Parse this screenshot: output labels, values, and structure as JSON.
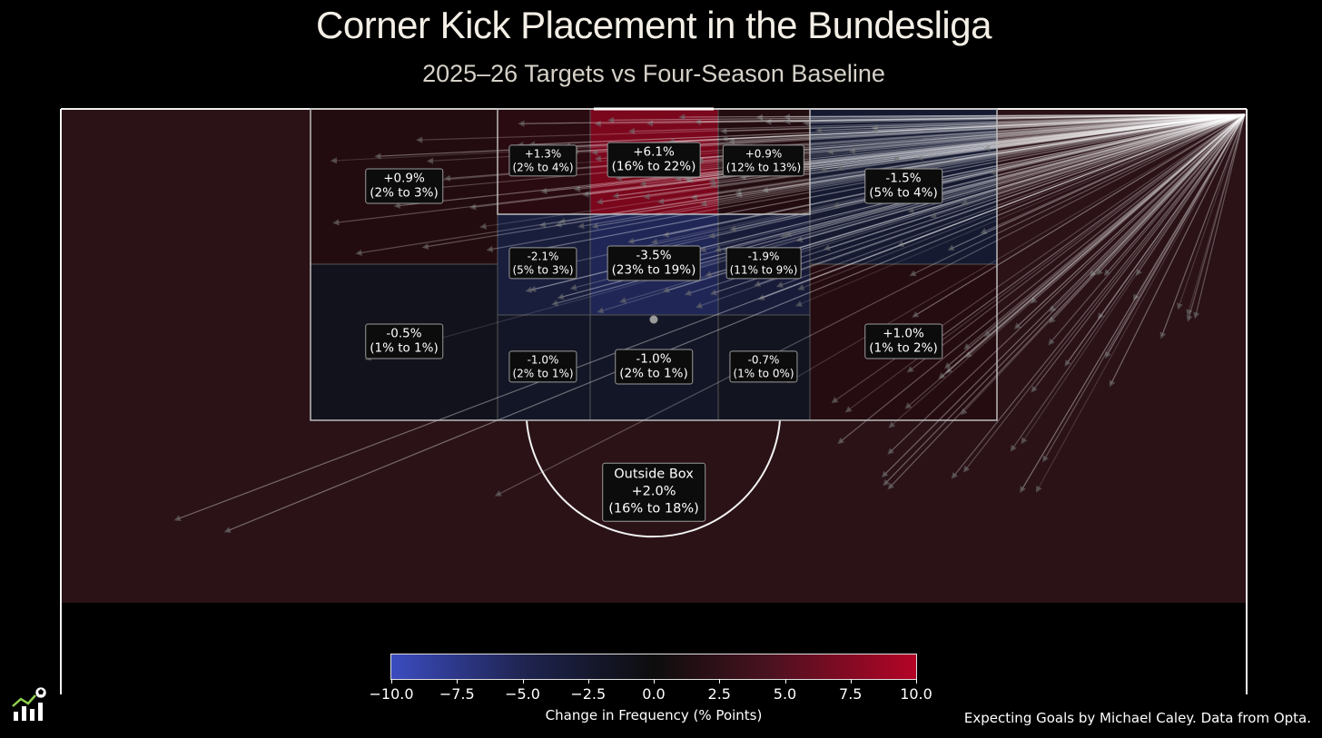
{
  "chart_data": {
    "type": "heatmap",
    "title": "Corner Kick Placement in the Bundesliga",
    "subtitle": "2025–26 Targets vs Four-Season Baseline",
    "colorbar": {
      "label": "Change in Frequency (% Points)",
      "range": [
        -10,
        10
      ],
      "ticks": [
        "−10.0",
        "−7.5",
        "−5.0",
        "−2.5",
        "0.0",
        "2.5",
        "5.0",
        "7.5",
        "10.0"
      ],
      "low_color": "#3b4cc0",
      "mid_color": "#0d0d0d",
      "high_color": "#b40426"
    },
    "zones": [
      {
        "id": "far-post-wide-top",
        "change": 0.9,
        "text": "+0.9%",
        "range": "(2% to 3%)"
      },
      {
        "id": "far-post-wide-bottom",
        "change": -0.5,
        "text": "-0.5%",
        "range": "(1% to 1%)"
      },
      {
        "id": "six-yard-far",
        "change": 1.3,
        "text": "+1.3%",
        "range": "(2% to 4%)"
      },
      {
        "id": "six-yard-center",
        "change": 6.1,
        "text": "+6.1%",
        "range": "(16% to 22%)"
      },
      {
        "id": "six-yard-near",
        "change": 0.9,
        "text": "+0.9%",
        "range": "(12% to 13%)"
      },
      {
        "id": "near-post-wide-top",
        "change": -1.5,
        "text": "-1.5%",
        "range": "(5% to 4%)"
      },
      {
        "id": "mid-far",
        "change": -2.1,
        "text": "-2.1%",
        "range": "(5% to 3%)"
      },
      {
        "id": "mid-center",
        "change": -3.5,
        "text": "-3.5%",
        "range": "(23% to 19%)"
      },
      {
        "id": "mid-near",
        "change": -1.9,
        "text": "-1.9%",
        "range": "(11% to 9%)"
      },
      {
        "id": "edge-far",
        "change": -1.0,
        "text": "-1.0%",
        "range": "(2% to 1%)"
      },
      {
        "id": "edge-center",
        "change": -1.0,
        "text": "-1.0%",
        "range": "(2% to 1%)"
      },
      {
        "id": "edge-near",
        "change": -0.7,
        "text": "-0.7%",
        "range": "(1% to 0%)"
      },
      {
        "id": "near-post-wide-bottom",
        "change": 1.0,
        "text": "+1.0%",
        "range": "(1% to 2%)"
      },
      {
        "id": "outside-box",
        "change": 2.0,
        "name": "Outside Box",
        "text": "+2.0%",
        "range": "(16% to 18%)"
      }
    ]
  },
  "credit": "Expecting Goals by Michael Caley. Data from Opta.",
  "logo_icon": "chart-ball-logo-icon"
}
